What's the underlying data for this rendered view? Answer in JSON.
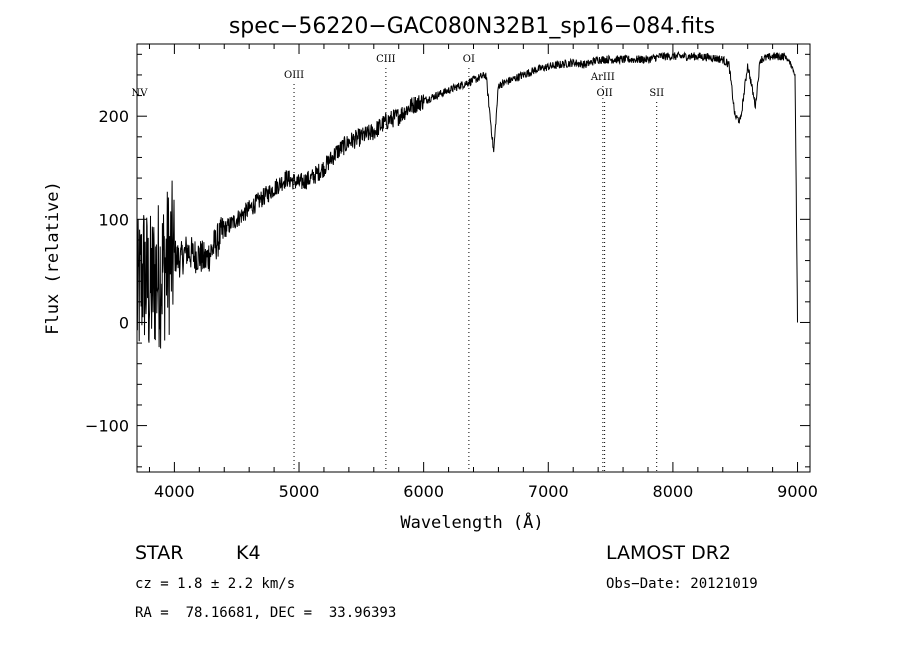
{
  "chart_data": {
    "type": "line",
    "title": "spec−56220−GAC080N32B1_sp16−084.fits",
    "xlabel": "Wavelength (Å)",
    "ylabel": "Flux (relative)",
    "xlim": [
      3700,
      9100
    ],
    "ylim": [
      -145,
      270
    ],
    "x_ticks": [
      4000,
      5000,
      6000,
      7000,
      8000,
      9000
    ],
    "y_ticks": [
      -100,
      0,
      100,
      200
    ],
    "x_tick_labels": [
      "4000",
      "5000",
      "6000",
      "7000",
      "8000",
      "9000"
    ],
    "y_tick_labels": [
      "−100",
      "0",
      "100",
      "200"
    ],
    "grid": false,
    "line_color": "#000000",
    "series": [
      {
        "x": [
          3700,
          3750,
          3800,
          3850,
          3900,
          3950,
          4000,
          4050,
          4100,
          4150,
          4200,
          4250,
          4300,
          4350,
          4400,
          4450,
          4500,
          4600,
          4700,
          4800,
          4900,
          5000,
          5100,
          5200,
          5300,
          5400,
          5500,
          5600,
          5700,
          5800,
          5900,
          6000,
          6100,
          6200,
          6300,
          6400,
          6500,
          6562,
          6600,
          6700,
          6800,
          6900,
          7000,
          7100,
          7200,
          7300,
          7400,
          7500,
          7600,
          7700,
          7800,
          7900,
          8000,
          8100,
          8200,
          8300,
          8400,
          8450,
          8498,
          8542,
          8600,
          8662,
          8700,
          8800,
          8900,
          8950,
          8980,
          9000
        ],
        "y": [
          20,
          50,
          30,
          45,
          50,
          60,
          65,
          60,
          70,
          65,
          65,
          60,
          70,
          80,
          90,
          95,
          100,
          110,
          120,
          130,
          140,
          135,
          140,
          150,
          165,
          175,
          180,
          185,
          195,
          200,
          210,
          215,
          220,
          225,
          230,
          235,
          240,
          165,
          230,
          235,
          240,
          245,
          248,
          250,
          252,
          250,
          255,
          255,
          255,
          255,
          255,
          258,
          258,
          258,
          258,
          257,
          255,
          250,
          200,
          195,
          250,
          210,
          255,
          258,
          258,
          250,
          240,
          0
        ]
      }
    ],
    "line_markers": [
      {
        "label": "NV",
        "x": 3720
      },
      {
        "label": "OIII",
        "x": 4960
      },
      {
        "label": "CIII",
        "x": 5697
      },
      {
        "label": "OI",
        "x": 6363
      },
      {
        "label": "ArIII",
        "x": 7438
      },
      {
        "label": "OII",
        "x": 7452
      },
      {
        "label": "SII",
        "x": 7870
      }
    ]
  },
  "info": {
    "object_class": "STAR",
    "subclass": "K4",
    "survey": "LAMOST DR2",
    "cz": "cz = 1.8 ± 2.2 km/s",
    "obs_date": "Obs−Date: 20121019",
    "coords": "RA =  78.16681, DEC =  33.96393"
  }
}
